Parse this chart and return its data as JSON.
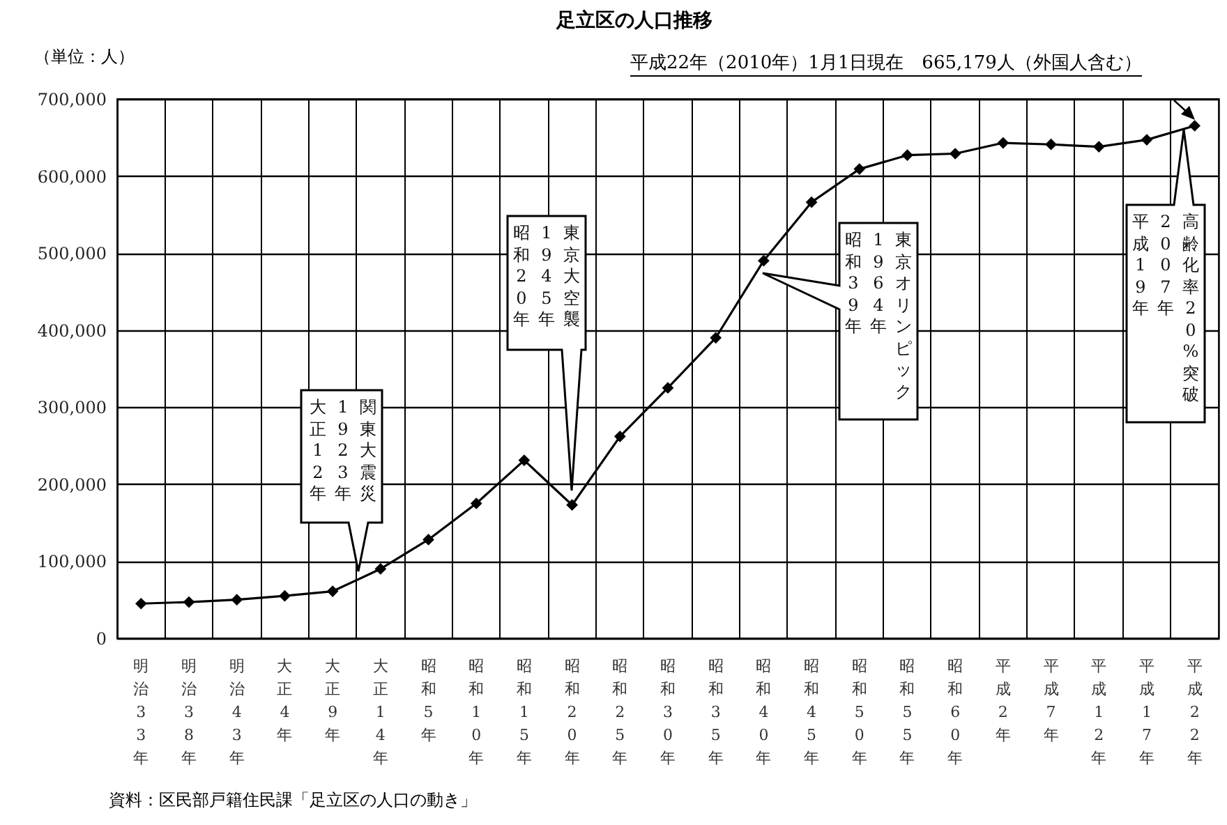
{
  "chart_data": {
    "type": "line",
    "title": "足立区の人口推移",
    "ylabel": "（単位：人）",
    "categories": [
      "明治33年",
      "明治38年",
      "明治43年",
      "大正4年",
      "大正9年",
      "大正14年",
      "昭和5年",
      "昭和10年",
      "昭和15年",
      "昭和20年",
      "昭和25年",
      "昭和30年",
      "昭和35年",
      "昭和40年",
      "昭和45年",
      "昭和50年",
      "昭和55年",
      "昭和60年",
      "平成2年",
      "平成7年",
      "平成12年",
      "平成17年",
      "平成22年"
    ],
    "series": [
      {
        "color": "#000000",
        "values": [
          45000,
          47000,
          50000,
          55000,
          61000,
          90000,
          128000,
          175000,
          231000,
          173000,
          262000,
          325000,
          390000,
          490000,
          566000,
          609000,
          627000,
          629000,
          643000,
          641000,
          638000,
          647000,
          665179
        ]
      }
    ],
    "ylim": [
      0,
      700000
    ],
    "yticks": [
      0,
      {
        "value": 100000,
        "label": "100,000"
      },
      {
        "value": 200000,
        "label": "200,000"
      },
      {
        "value": 300000,
        "label": "300,000"
      },
      {
        "value": 400000,
        "label": "400,000"
      },
      {
        "value": 500000,
        "label": "500,000"
      },
      {
        "value": 600000,
        "label": "600,000"
      },
      {
        "value": 700000,
        "label": "700,000"
      }
    ],
    "grid": true,
    "marker": "diamond",
    "line_style": "solid",
    "annotations": [
      "平成22年（2010年）1月1日現在　665,179人（外国人含む）",
      "関東大震災",
      "1923年",
      "大正12年",
      "東京大空襲",
      "1945年",
      "昭和20年",
      "東京オリンピック",
      "1964年",
      "昭和39年",
      "高齢化率20%突破",
      "2007年",
      "平成19年",
      "資料：区民部戸籍住民課「足立区の人口の動き」"
    ]
  }
}
